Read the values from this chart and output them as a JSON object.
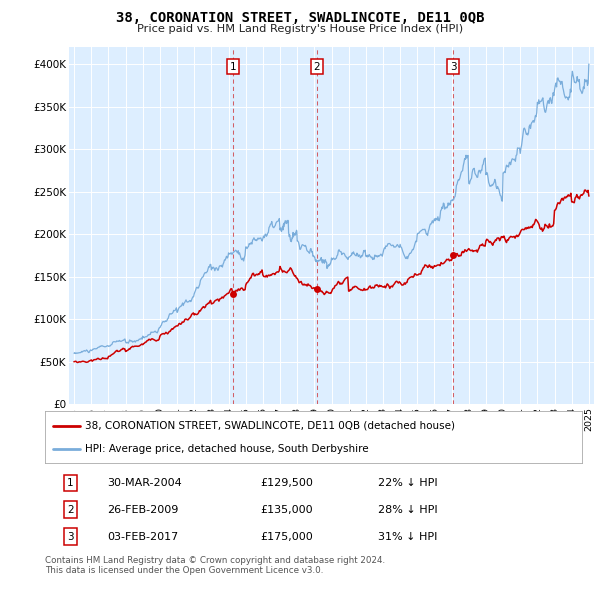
{
  "title": "38, CORONATION STREET, SWADLINCOTE, DE11 0QB",
  "subtitle": "Price paid vs. HM Land Registry's House Price Index (HPI)",
  "legend_line1": "38, CORONATION STREET, SWADLINCOTE, DE11 0QB (detached house)",
  "legend_line2": "HPI: Average price, detached house, South Derbyshire",
  "transactions": [
    {
      "num": 1,
      "date": "30-MAR-2004",
      "price": "£129,500",
      "pct": "22% ↓ HPI",
      "x_year": 2004.25,
      "y_val": 129500
    },
    {
      "num": 2,
      "date": "26-FEB-2009",
      "price": "£135,000",
      "pct": "28% ↓ HPI",
      "x_year": 2009.15,
      "y_val": 135000
    },
    {
      "num": 3,
      "date": "03-FEB-2017",
      "price": "£175,000",
      "pct": "31% ↓ HPI",
      "x_year": 2017.1,
      "y_val": 175000
    }
  ],
  "footer1": "Contains HM Land Registry data © Crown copyright and database right 2024.",
  "footer2": "This data is licensed under the Open Government Licence v3.0.",
  "red_color": "#cc0000",
  "blue_color": "#7aaddb",
  "bg_color": "#ddeeff",
  "bg_highlight_color": "#cce0f0",
  "ylim": [
    0,
    420000
  ],
  "xlim_start": 1994.7,
  "xlim_end": 2025.3
}
